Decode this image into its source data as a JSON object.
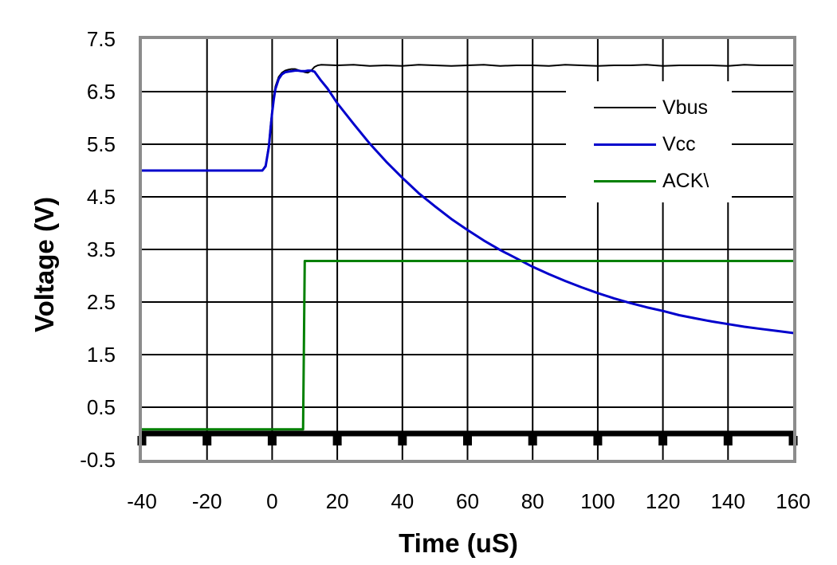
{
  "chart_data": {
    "type": "line",
    "title": "",
    "xlabel": "Time (uS)",
    "ylabel": "Voltage (V)",
    "xlim": [
      -40,
      160
    ],
    "ylim": [
      -0.5,
      7.5
    ],
    "xticks": [
      -40,
      -20,
      0,
      20,
      40,
      60,
      80,
      100,
      120,
      140,
      160
    ],
    "xtick_labels": [
      "-40",
      "-20",
      "0",
      "20",
      "40",
      "60",
      "80",
      "100",
      "120",
      "140",
      "160"
    ],
    "yticks": [
      7.5,
      6.5,
      5.5,
      4.5,
      3.5,
      2.5,
      1.5,
      0.5,
      -0.5
    ],
    "ytick_labels": [
      "7.5",
      "6.5",
      "5.5",
      "4.5",
      "3.5",
      "2.5",
      "1.5",
      "0.5",
      "-0.5"
    ],
    "grid": true,
    "gridline_color": "#000000",
    "plot_border_color": "#8c8c8c",
    "zero_axis": {
      "value": 0,
      "color": "#000000",
      "tick_marks_at": [
        -40,
        -20,
        0,
        20,
        40,
        60,
        80,
        100,
        120,
        140,
        160
      ]
    },
    "legend_position": "upper-right-inside",
    "series": [
      {
        "name": "Vbus",
        "color": "#000000",
        "points": [
          [
            -40,
            5.0
          ],
          [
            -3,
            5.0
          ],
          [
            -2,
            5.1
          ],
          [
            -1,
            5.5
          ],
          [
            -0.5,
            5.85
          ],
          [
            0,
            6.15
          ],
          [
            0.5,
            6.4
          ],
          [
            1,
            6.6
          ],
          [
            2,
            6.78
          ],
          [
            3,
            6.86
          ],
          [
            4,
            6.9
          ],
          [
            5,
            6.92
          ],
          [
            6,
            6.93
          ],
          [
            7,
            6.93
          ],
          [
            8,
            6.91
          ],
          [
            9,
            6.89
          ],
          [
            10,
            6.87
          ],
          [
            11,
            6.86
          ],
          [
            12,
            6.9
          ],
          [
            13,
            6.97
          ],
          [
            14,
            7.0
          ],
          [
            15,
            7.01
          ],
          [
            20,
            7.0
          ],
          [
            25,
            7.01
          ],
          [
            30,
            6.99
          ],
          [
            35,
            7.0
          ],
          [
            40,
            6.99
          ],
          [
            45,
            7.01
          ],
          [
            50,
            7.0
          ],
          [
            55,
            6.99
          ],
          [
            60,
            7.0
          ],
          [
            65,
            7.01
          ],
          [
            70,
            6.99
          ],
          [
            75,
            7.0
          ],
          [
            80,
            7.0
          ],
          [
            85,
            6.99
          ],
          [
            90,
            7.01
          ],
          [
            95,
            7.0
          ],
          [
            100,
            6.99
          ],
          [
            105,
            7.0
          ],
          [
            110,
            7.0
          ],
          [
            115,
            7.01
          ],
          [
            120,
            6.99
          ],
          [
            125,
            7.0
          ],
          [
            130,
            7.0
          ],
          [
            135,
            7.0
          ],
          [
            140,
            6.99
          ],
          [
            145,
            7.01
          ],
          [
            150,
            7.0
          ],
          [
            155,
            7.0
          ],
          [
            160,
            7.0
          ]
        ]
      },
      {
        "name": "Vcc",
        "color": "#0000cc",
        "points": [
          [
            -40,
            5.0
          ],
          [
            -3,
            5.0
          ],
          [
            -2,
            5.08
          ],
          [
            -1,
            5.45
          ],
          [
            -0.5,
            5.8
          ],
          [
            0,
            6.1
          ],
          [
            0.5,
            6.35
          ],
          [
            1,
            6.55
          ],
          [
            2,
            6.74
          ],
          [
            3,
            6.83
          ],
          [
            4,
            6.87
          ],
          [
            5,
            6.88
          ],
          [
            6,
            6.89
          ],
          [
            7,
            6.9
          ],
          [
            8,
            6.9
          ],
          [
            9,
            6.89
          ],
          [
            10,
            6.89
          ],
          [
            11,
            6.9
          ],
          [
            12,
            6.9
          ],
          [
            13,
            6.88
          ],
          [
            15,
            6.71
          ],
          [
            17,
            6.56
          ],
          [
            20,
            6.28
          ],
          [
            25,
            5.89
          ],
          [
            30,
            5.51
          ],
          [
            35,
            5.17
          ],
          [
            40,
            4.86
          ],
          [
            45,
            4.57
          ],
          [
            50,
            4.32
          ],
          [
            55,
            4.08
          ],
          [
            60,
            3.87
          ],
          [
            65,
            3.67
          ],
          [
            70,
            3.49
          ],
          [
            75,
            3.33
          ],
          [
            80,
            3.17
          ],
          [
            85,
            3.03
          ],
          [
            90,
            2.9
          ],
          [
            95,
            2.78
          ],
          [
            100,
            2.67
          ],
          [
            105,
            2.57
          ],
          [
            110,
            2.48
          ],
          [
            115,
            2.4
          ],
          [
            120,
            2.33
          ],
          [
            125,
            2.25
          ],
          [
            130,
            2.19
          ],
          [
            135,
            2.13
          ],
          [
            140,
            2.08
          ],
          [
            145,
            2.03
          ],
          [
            150,
            1.99
          ],
          [
            155,
            1.95
          ],
          [
            160,
            1.91
          ]
        ]
      },
      {
        "name": "ACK\\",
        "color": "#008000",
        "points": [
          [
            -40,
            0.08
          ],
          [
            9.5,
            0.08
          ],
          [
            10,
            3.28
          ],
          [
            160,
            3.28
          ]
        ]
      }
    ]
  },
  "legend": {
    "items": [
      {
        "label": "Vbus",
        "color": "#000000"
      },
      {
        "label": "Vcc",
        "color": "#0000cc"
      },
      {
        "label": "ACK\\",
        "color": "#008000"
      }
    ]
  }
}
